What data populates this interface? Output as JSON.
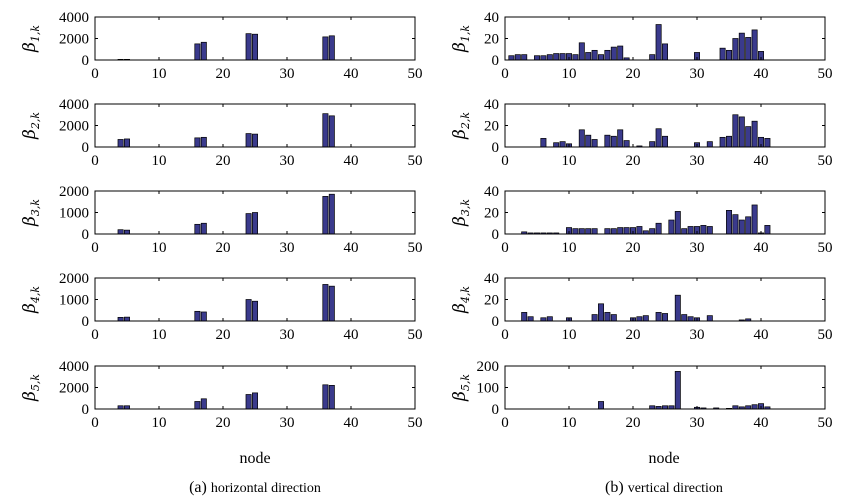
{
  "figure": {
    "caption_a": "horizontal direction",
    "caption_a_prefix": "(a)",
    "caption_b": "vertical direction",
    "caption_b_prefix": "(b)"
  },
  "chart_data": [
    {
      "type": "bar",
      "panel": "a",
      "ylabel": "β",
      "ylabel_sub": "1,k",
      "xlabel": "",
      "xlim": [
        0,
        50
      ],
      "ylim": [
        0,
        4000
      ],
      "yticks": [
        0,
        2000,
        4000
      ],
      "xticks": [
        0,
        10,
        20,
        30,
        40,
        50
      ],
      "x": [
        4,
        5,
        16,
        17,
        24,
        25,
        36,
        37
      ],
      "values": [
        60,
        60,
        1500,
        1650,
        2450,
        2400,
        2150,
        2250
      ]
    },
    {
      "type": "bar",
      "panel": "a",
      "ylabel": "β",
      "ylabel_sub": "2,k",
      "xlabel": "",
      "xlim": [
        0,
        50
      ],
      "ylim": [
        0,
        4000
      ],
      "yticks": [
        0,
        2000,
        4000
      ],
      "xticks": [
        0,
        10,
        20,
        30,
        40,
        50
      ],
      "x": [
        4,
        5,
        16,
        17,
        24,
        25,
        36,
        37
      ],
      "values": [
        700,
        750,
        850,
        900,
        1250,
        1200,
        3100,
        2900
      ]
    },
    {
      "type": "bar",
      "panel": "a",
      "ylabel": "β",
      "ylabel_sub": "3,k",
      "xlabel": "",
      "xlim": [
        0,
        50
      ],
      "ylim": [
        0,
        2000
      ],
      "yticks": [
        0,
        1000,
        2000
      ],
      "xticks": [
        0,
        10,
        20,
        30,
        40,
        50
      ],
      "x": [
        4,
        5,
        16,
        17,
        24,
        25,
        36,
        37
      ],
      "values": [
        200,
        180,
        450,
        500,
        950,
        1000,
        1750,
        1850
      ]
    },
    {
      "type": "bar",
      "panel": "a",
      "ylabel": "β",
      "ylabel_sub": "4,k",
      "xlabel": "",
      "xlim": [
        0,
        50
      ],
      "ylim": [
        0,
        2000
      ],
      "yticks": [
        0,
        1000,
        2000
      ],
      "xticks": [
        0,
        10,
        20,
        30,
        40,
        50
      ],
      "x": [
        4,
        5,
        16,
        17,
        24,
        25,
        36,
        37
      ],
      "values": [
        170,
        180,
        450,
        420,
        1000,
        920,
        1700,
        1620
      ]
    },
    {
      "type": "bar",
      "panel": "a",
      "ylabel": "β",
      "ylabel_sub": "5,k",
      "xlabel": "node",
      "xlim": [
        0,
        50
      ],
      "ylim": [
        0,
        4000
      ],
      "yticks": [
        0,
        2000,
        4000
      ],
      "xticks": [
        0,
        10,
        20,
        30,
        40,
        50
      ],
      "x": [
        4,
        5,
        16,
        17,
        24,
        25,
        36,
        37
      ],
      "values": [
        300,
        300,
        700,
        950,
        1350,
        1500,
        2250,
        2200
      ]
    },
    {
      "type": "bar",
      "panel": "b",
      "ylabel": "β",
      "ylabel_sub": "1,k",
      "xlabel": "",
      "xlim": [
        0,
        50
      ],
      "ylim": [
        0,
        40
      ],
      "yticks": [
        0,
        20,
        40
      ],
      "xticks": [
        0,
        10,
        20,
        30,
        40,
        50
      ],
      "x": [
        1,
        2,
        3,
        5,
        6,
        7,
        8,
        9,
        10,
        11,
        12,
        13,
        14,
        15,
        16,
        17,
        18,
        19,
        23,
        24,
        25,
        30,
        34,
        35,
        36,
        37,
        38,
        39,
        40
      ],
      "values": [
        4,
        5,
        5,
        4,
        4,
        5,
        6,
        6,
        6,
        5,
        16,
        7,
        9,
        5,
        9,
        12,
        13,
        2,
        5,
        33,
        15,
        7,
        11,
        9,
        20,
        25,
        21,
        28,
        8
      ]
    },
    {
      "type": "bar",
      "panel": "b",
      "ylabel": "β",
      "ylabel_sub": "2,k",
      "xlabel": "",
      "xlim": [
        0,
        50
      ],
      "ylim": [
        0,
        40
      ],
      "yticks": [
        0,
        20,
        40
      ],
      "xticks": [
        0,
        10,
        20,
        30,
        40,
        50
      ],
      "x": [
        6,
        8,
        9,
        10,
        12,
        13,
        14,
        16,
        17,
        18,
        19,
        21,
        23,
        24,
        25,
        30,
        32,
        34,
        35,
        36,
        37,
        38,
        39,
        40,
        41
      ],
      "values": [
        8,
        4,
        5,
        3,
        16,
        11,
        7,
        11,
        10,
        16,
        6,
        1,
        5,
        17,
        10,
        4,
        5,
        9,
        10,
        30,
        28,
        19,
        24,
        9,
        8
      ]
    },
    {
      "type": "bar",
      "panel": "b",
      "ylabel": "β",
      "ylabel_sub": "3,k",
      "xlabel": "",
      "xlim": [
        0,
        50
      ],
      "ylim": [
        0,
        40
      ],
      "yticks": [
        0,
        20,
        40
      ],
      "xticks": [
        0,
        10,
        20,
        30,
        40,
        50
      ],
      "x": [
        3,
        4,
        5,
        6,
        7,
        8,
        10,
        11,
        12,
        13,
        14,
        16,
        17,
        18,
        19,
        20,
        21,
        22,
        23,
        24,
        26,
        27,
        28,
        29,
        30,
        31,
        32,
        35,
        36,
        37,
        38,
        39,
        40,
        41
      ],
      "values": [
        2,
        1,
        1,
        1,
        1,
        1,
        6,
        5,
        5,
        5,
        5,
        5,
        5,
        6,
        6,
        6,
        7,
        3,
        5,
        10,
        13,
        21,
        5,
        7,
        7,
        8,
        7,
        22,
        18,
        13,
        16,
        27,
        1,
        8
      ]
    },
    {
      "type": "bar",
      "panel": "b",
      "ylabel": "β",
      "ylabel_sub": "4,k",
      "xlabel": "",
      "xlim": [
        0,
        50
      ],
      "ylim": [
        0,
        40
      ],
      "yticks": [
        0,
        20,
        40
      ],
      "xticks": [
        0,
        10,
        20,
        30,
        40,
        50
      ],
      "x": [
        3,
        4,
        6,
        7,
        10,
        14,
        15,
        16,
        17,
        20,
        21,
        22,
        24,
        25,
        27,
        28,
        29,
        30,
        32,
        37,
        38
      ],
      "values": [
        8,
        4,
        3,
        4,
        3,
        6,
        16,
        8,
        6,
        3,
        4,
        5,
        8,
        7,
        24,
        6,
        4,
        3,
        5,
        1,
        2
      ]
    },
    {
      "type": "bar",
      "panel": "b",
      "ylabel": "β",
      "ylabel_sub": "5,k",
      "xlabel": "node",
      "xlim": [
        0,
        50
      ],
      "ylim": [
        0,
        200
      ],
      "yticks": [
        0,
        100,
        200
      ],
      "xticks": [
        0,
        10,
        20,
        30,
        40,
        50
      ],
      "x": [
        15,
        23,
        24,
        25,
        26,
        27,
        30,
        31,
        33,
        35,
        36,
        37,
        38,
        39,
        40,
        41
      ],
      "values": [
        35,
        15,
        12,
        15,
        15,
        175,
        8,
        5,
        5,
        3,
        15,
        10,
        15,
        20,
        25,
        10
      ]
    }
  ]
}
